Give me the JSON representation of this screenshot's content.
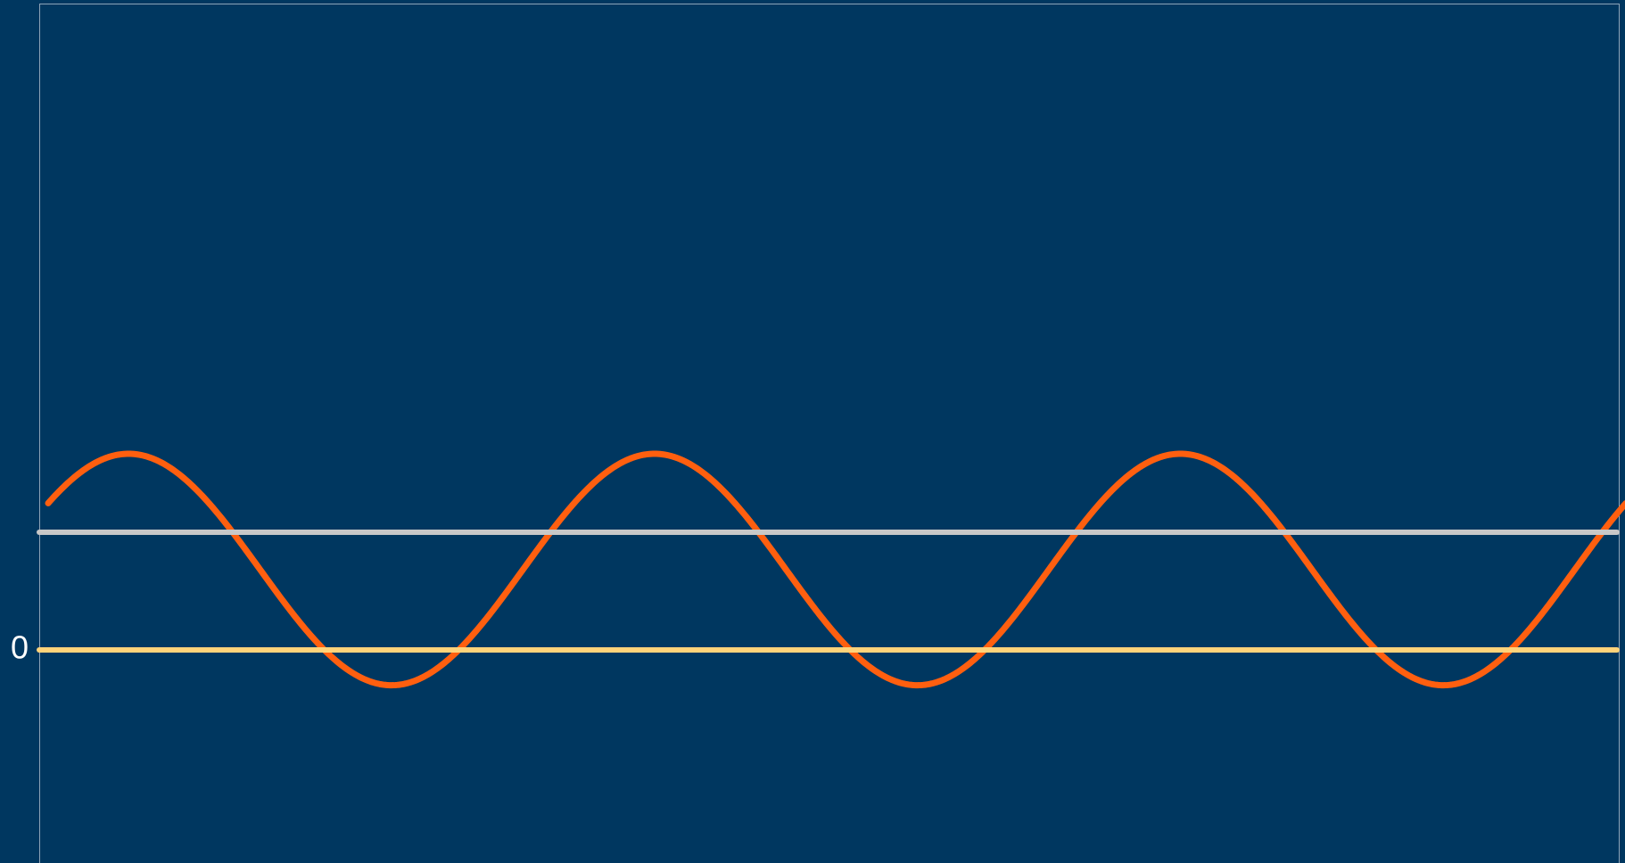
{
  "chart_data": {
    "type": "line",
    "title": "",
    "xlabel": "",
    "ylabel": "",
    "grid": false,
    "legend": "none",
    "xlim": [
      0,
      3
    ],
    "ylim": [
      -1.2,
      3.2
    ],
    "y_ticks": [
      0
    ],
    "y_tick_labels": [
      "0"
    ],
    "series": [
      {
        "kind": "sine",
        "color": "#FF5F0F",
        "x": [
          0,
          0.125,
          0.25,
          0.375,
          0.5,
          0.625,
          0.75,
          0.875,
          1,
          1.125,
          1.25,
          1.375,
          1.5,
          1.625,
          1.75,
          1.875,
          2,
          2.125,
          2.25,
          2.375,
          2.5,
          2.625,
          2.75,
          2.875,
          3
        ],
        "values": [
          0.69,
          0.99,
          1.0,
          0.72,
          0.22,
          -0.1,
          -0.18,
          -0.07,
          0.48,
          0.84,
          1.0,
          0.9,
          0.47,
          0.05,
          -0.18,
          -0.16,
          0.22,
          0.66,
          0.99,
          0.95,
          0.68,
          0.2,
          -0.12,
          -0.18,
          0.11
        ]
      },
      {
        "kind": "constant",
        "color": "#C8C8C8",
        "x": [
          0,
          3
        ],
        "values": [
          0.6,
          0.6
        ]
      },
      {
        "kind": "constant",
        "color": "#FFD37A",
        "x": [
          0,
          3
        ],
        "values": [
          0,
          0
        ]
      }
    ],
    "colors": {
      "background": "#003760",
      "frame": "#8EA4B8",
      "tick_text": "#FFFFFF"
    }
  }
}
